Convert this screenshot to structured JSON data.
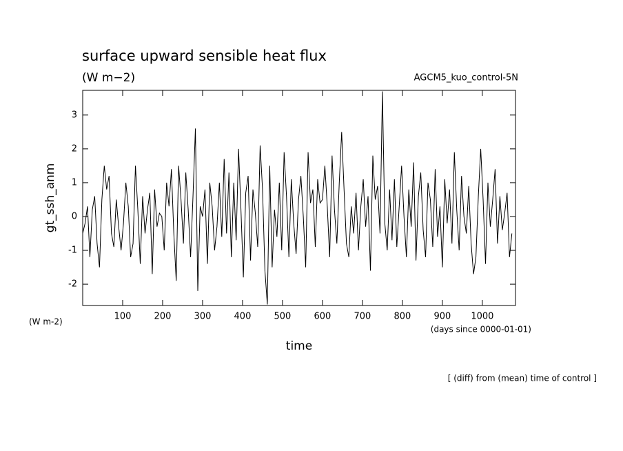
{
  "chart_data": {
    "type": "line",
    "title": "surface upward sensible heat flux",
    "subtitle": "(W m−2)",
    "run_label": "AGCM5_kuo_control-5N",
    "y_label": "gt_ssh_anm",
    "y_units": "(W m-2)",
    "x_units": "(days since 0000-01-01)",
    "x_label": "time",
    "note": "[ (diff) from (mean) time of control ]",
    "xlim": [
      0,
      1083
    ],
    "ylim": [
      -2.63,
      3.73
    ],
    "xticks": [
      100,
      200,
      300,
      400,
      500,
      600,
      700,
      800,
      900,
      1000
    ],
    "yticks": [
      -2,
      -1,
      0,
      1,
      2,
      3
    ],
    "x": [
      0,
      6,
      12,
      18,
      24,
      30,
      36,
      42,
      48,
      54,
      60,
      66,
      72,
      78,
      84,
      90,
      96,
      102,
      108,
      114,
      120,
      126,
      132,
      138,
      144,
      150,
      156,
      162,
      168,
      174,
      180,
      186,
      192,
      198,
      204,
      210,
      216,
      222,
      228,
      234,
      240,
      246,
      252,
      258,
      264,
      270,
      276,
      282,
      288,
      294,
      300,
      306,
      312,
      318,
      324,
      330,
      336,
      342,
      348,
      354,
      360,
      366,
      372,
      378,
      384,
      390,
      396,
      402,
      408,
      414,
      420,
      426,
      432,
      438,
      444,
      450,
      456,
      462,
      468,
      474,
      480,
      486,
      492,
      498,
      504,
      510,
      516,
      522,
      528,
      534,
      540,
      546,
      552,
      558,
      564,
      570,
      576,
      582,
      588,
      594,
      600,
      606,
      612,
      618,
      624,
      630,
      636,
      642,
      648,
      654,
      660,
      666,
      672,
      678,
      684,
      690,
      696,
      702,
      708,
      714,
      720,
      726,
      732,
      738,
      744,
      750,
      756,
      762,
      768,
      774,
      780,
      786,
      792,
      798,
      804,
      810,
      816,
      822,
      828,
      834,
      840,
      846,
      852,
      858,
      864,
      870,
      876,
      882,
      888,
      894,
      900,
      906,
      912,
      918,
      924,
      930,
      936,
      942,
      948,
      954,
      960,
      966,
      972,
      978,
      984,
      990,
      996,
      1002,
      1008,
      1014,
      1020,
      1026,
      1032,
      1038,
      1044,
      1050,
      1056,
      1062,
      1068,
      1074
    ],
    "series": [
      {
        "name": "gt_ssh_anm",
        "color": "#000000",
        "values": [
          -0.5,
          -0.2,
          0.3,
          -1.2,
          0.2,
          0.6,
          -0.8,
          -1.5,
          0.5,
          1.5,
          0.8,
          1.2,
          -0.5,
          -0.9,
          0.5,
          -0.3,
          -1.0,
          -0.2,
          1.0,
          0.3,
          -1.2,
          -0.8,
          1.5,
          0.2,
          -1.4,
          0.6,
          -0.5,
          0.2,
          0.7,
          -1.7,
          0.8,
          -0.3,
          0.1,
          0.0,
          -1.0,
          1.0,
          0.3,
          1.4,
          -0.5,
          -1.9,
          1.5,
          0.5,
          -0.8,
          1.3,
          0.2,
          -1.2,
          0.6,
          2.6,
          -2.2,
          0.3,
          0.0,
          0.8,
          -1.4,
          1.0,
          0.3,
          -1.0,
          -0.3,
          1.0,
          -0.6,
          1.7,
          -0.5,
          1.3,
          -1.2,
          1.0,
          -0.7,
          2.0,
          0.2,
          -1.8,
          0.7,
          1.2,
          -1.3,
          0.8,
          0.1,
          -0.9,
          2.1,
          0.8,
          -1.6,
          -2.6,
          1.5,
          -1.5,
          0.2,
          -0.6,
          1.0,
          -1.0,
          1.9,
          0.6,
          -1.2,
          1.1,
          -0.2,
          -1.1,
          0.5,
          1.2,
          0.0,
          -1.5,
          1.9,
          0.4,
          0.8,
          -0.9,
          1.1,
          0.4,
          0.5,
          1.5,
          0.3,
          -1.2,
          1.8,
          0.2,
          -0.8,
          1.0,
          2.5,
          0.8,
          -0.8,
          -1.2,
          0.3,
          -0.5,
          0.7,
          -1.0,
          0.3,
          1.1,
          -0.3,
          0.6,
          -1.6,
          1.8,
          0.5,
          0.9,
          -0.5,
          3.7,
          -0.2,
          -1.0,
          0.8,
          -0.7,
          1.1,
          -0.9,
          0.3,
          1.5,
          0.0,
          -1.2,
          0.8,
          -0.3,
          1.6,
          -1.3,
          0.6,
          1.3,
          -0.4,
          -1.2,
          1.0,
          0.5,
          -0.9,
          1.4,
          -0.6,
          0.3,
          -1.5,
          1.1,
          -0.2,
          0.8,
          -0.8,
          1.9,
          0.2,
          -1.0,
          1.2,
          0.0,
          -0.5,
          0.9,
          -0.8,
          -1.7,
          -1.2,
          0.6,
          2.0,
          0.5,
          -1.4,
          1.0,
          -0.3,
          0.5,
          1.4,
          -0.8,
          0.6,
          -0.4,
          0.1,
          0.7,
          -1.2,
          -0.5
        ]
      }
    ]
  }
}
